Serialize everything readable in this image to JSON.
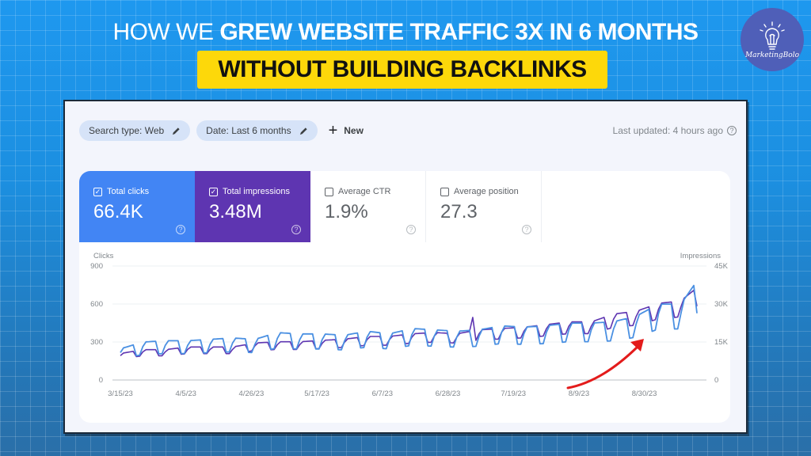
{
  "headline": {
    "light": "HOW WE ",
    "bold": "GREW WEBSITE TRAFFIC 3X IN 6 MONTHS",
    "highlight": "WITHOUT BUILDING BACKLINKS"
  },
  "logo": {
    "brand": "MarketingBolo",
    "icon": "lightbulb-icon"
  },
  "toolbar": {
    "filters": [
      {
        "label": "Search type: Web",
        "icon": "pencil-icon"
      },
      {
        "label": "Date: Last 6 months",
        "icon": "pencil-icon"
      }
    ],
    "new_label": "New",
    "last_updated": "Last updated: 4 hours ago"
  },
  "cards": [
    {
      "label": "Total clicks",
      "value": "66.4K",
      "checked": true,
      "color": "#4285f4"
    },
    {
      "label": "Total impressions",
      "value": "3.48M",
      "checked": true,
      "color": "#5e35b1"
    },
    {
      "label": "Average CTR",
      "value": "1.9%",
      "checked": false
    },
    {
      "label": "Average position",
      "value": "27.3",
      "checked": false
    }
  ],
  "colors": {
    "clicks_line": "#4a90e2",
    "impressions_line": "#5e35b1",
    "arrow": "#e31b1b",
    "highlight": "#fdd80a"
  },
  "chart_data": {
    "type": "line",
    "title": "",
    "xlabel": "",
    "ylabel": "Clicks",
    "ylabel_right": "Impressions",
    "ylim": [
      0,
      900
    ],
    "ylim_right": [
      0,
      45000
    ],
    "yticks_left": [
      "0",
      "300",
      "600",
      "900"
    ],
    "yticks_right": [
      "0",
      "15K",
      "30K",
      "45K"
    ],
    "x_tick_labels": [
      "3/15/23",
      "4/5/23",
      "4/26/23",
      "5/17/23",
      "6/7/23",
      "6/28/23",
      "7/19/23",
      "8/9/23",
      "8/30/23"
    ],
    "grid": true,
    "annotation": "red upward arrow showing growth trend",
    "x": [
      "3/15",
      "3/22",
      "3/29",
      "4/5",
      "4/12",
      "4/19",
      "4/26",
      "5/3",
      "5/10",
      "5/17",
      "5/24",
      "5/31",
      "6/7",
      "6/14",
      "6/21",
      "6/28",
      "7/5",
      "7/12",
      "7/19",
      "7/26",
      "8/2",
      "8/9",
      "8/16",
      "8/23",
      "8/30",
      "9/6",
      "9/12"
    ],
    "series": [
      {
        "name": "Clicks",
        "axis": "left",
        "values": [
          230,
          280,
          290,
          290,
          300,
          310,
          300,
          350,
          340,
          340,
          330,
          360,
          340,
          380,
          370,
          360,
          370,
          400,
          390,
          400,
          420,
          420,
          430,
          470,
          560,
          560,
          800
        ]
      },
      {
        "name": "Impressions",
        "axis": "right",
        "values": [
          10000,
          11500,
          11500,
          12500,
          12500,
          12500,
          14000,
          14500,
          14500,
          15000,
          15500,
          16500,
          16500,
          17500,
          18000,
          17500,
          19000,
          19500,
          20000,
          21000,
          22000,
          22000,
          25000,
          26000,
          29000,
          30000,
          37000
        ]
      }
    ]
  }
}
